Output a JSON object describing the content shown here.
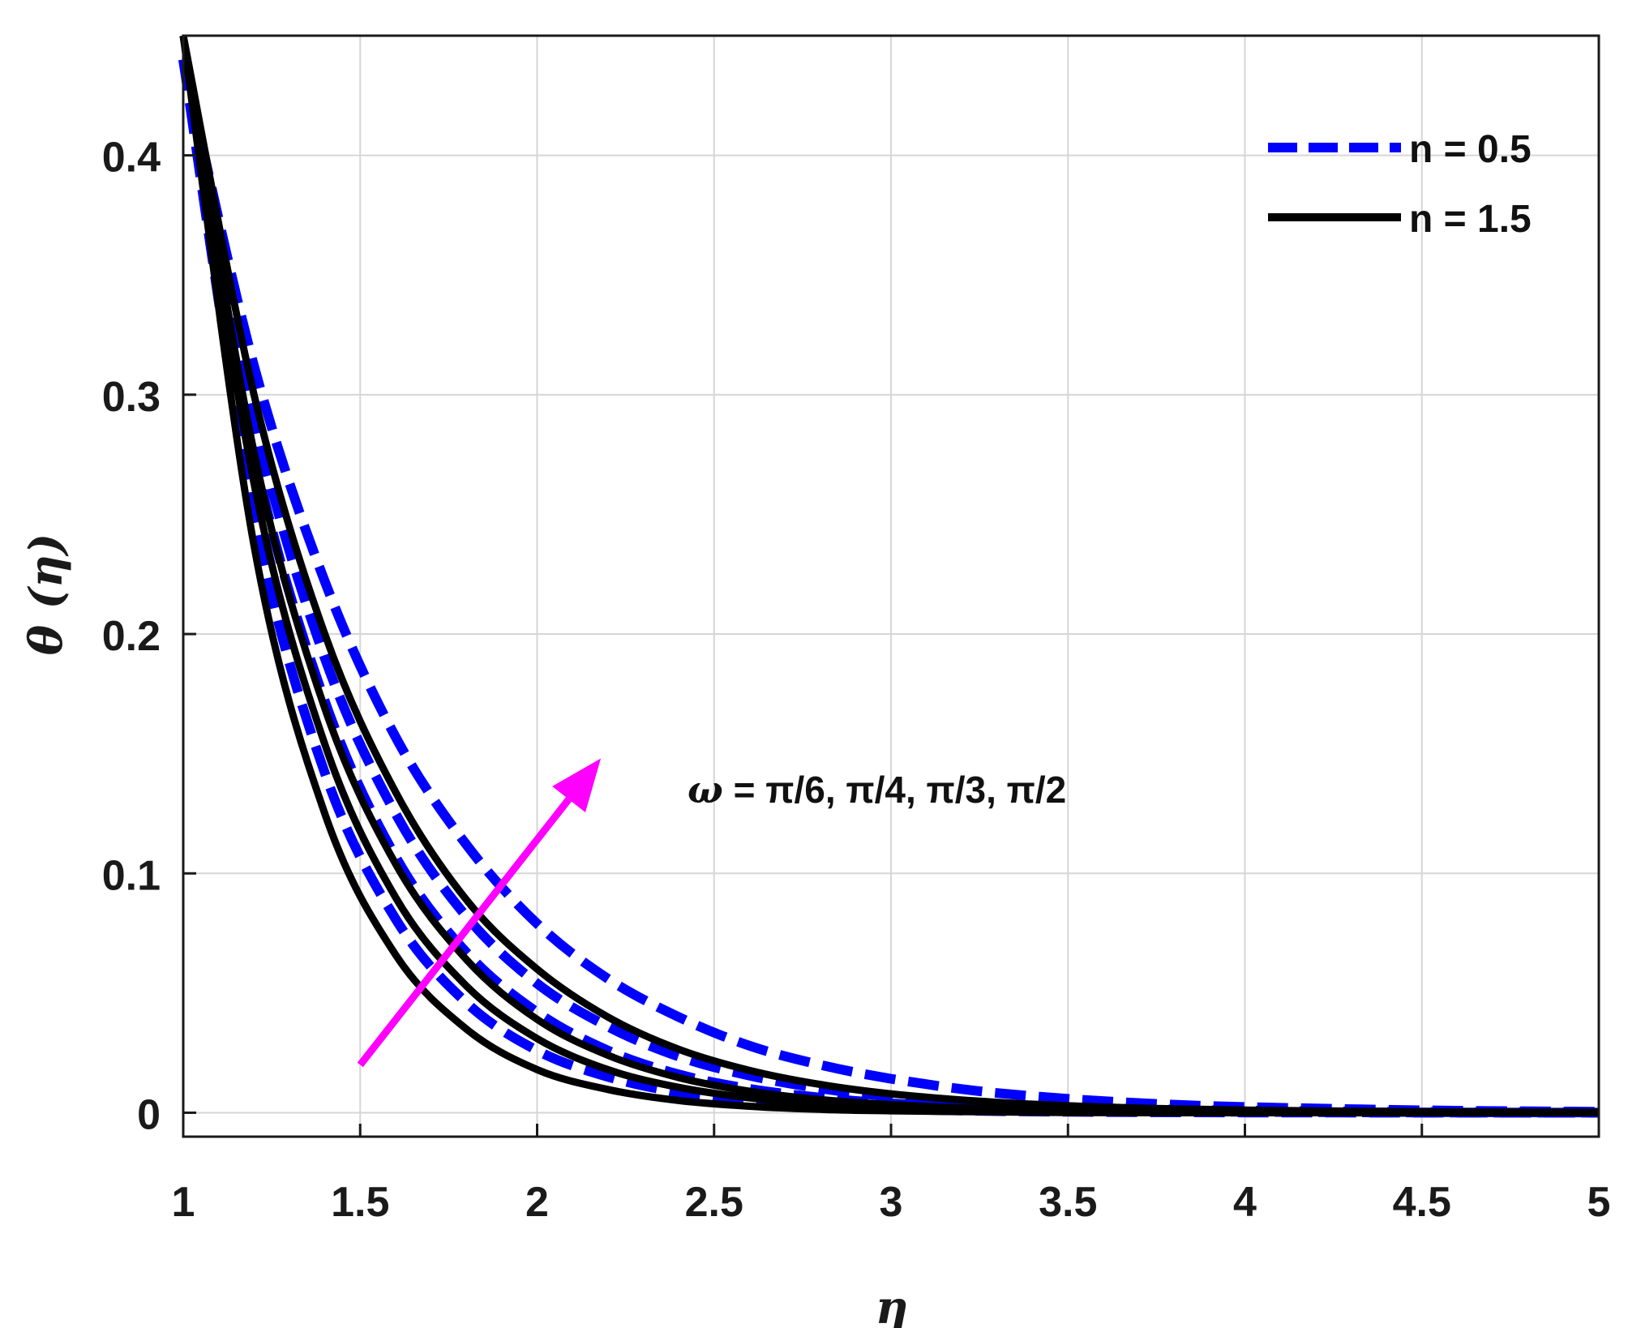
{
  "chart_data": {
    "type": "line",
    "title": "",
    "xlabel": "η",
    "ylabel": "θ (η)",
    "xlim": [
      1,
      5
    ],
    "ylim": [
      -0.01,
      0.45
    ],
    "xticks": [
      1,
      1.5,
      2,
      2.5,
      3,
      3.5,
      4,
      4.5,
      5
    ],
    "xtick_labels": [
      "1",
      "1.5",
      "2",
      "2.5",
      "3",
      "3.5",
      "4",
      "4.5",
      "5"
    ],
    "yticks": [
      0,
      0.1,
      0.2,
      0.3,
      0.4
    ],
    "ytick_labels": [
      "0",
      "0.1",
      "0.2",
      "0.3",
      "0.4"
    ],
    "grid": true,
    "legend": {
      "position": "top-right",
      "entries": [
        {
          "label": "n = 0.5",
          "color": "#0000ff",
          "style": "dashed"
        },
        {
          "label": "n = 1.5",
          "color": "#000000",
          "style": "solid"
        }
      ]
    },
    "annotation": {
      "text_omega": "ω",
      "text_rest": " = π/6, π/4, π/3, π/2",
      "arrow_color": "#ff00ff",
      "arrow_from": [
        1.5,
        0.02
      ],
      "arrow_to": [
        2.18,
        0.148
      ]
    },
    "x": [
      1,
      1.2,
      1.4,
      1.6,
      1.8,
      2,
      2.2,
      2.4,
      2.6,
      2.8,
      3,
      3.25,
      3.5,
      3.75,
      4,
      4.5,
      5
    ],
    "series": [
      {
        "group": "n = 0.5",
        "color": "#0000ff",
        "style": "dashed",
        "values": [
          0.44,
          0.25,
          0.142,
          0.081,
          0.046,
          0.026,
          0.015,
          0.0085,
          0.0048,
          0.0027,
          0.0016,
          0.0008,
          0.0004,
          0.0002,
          0.0001,
          3e-05,
          0.0
        ]
      },
      {
        "group": "n = 0.5",
        "color": "#0000ff",
        "style": "dashed",
        "values": [
          0.44,
          0.275,
          0.172,
          0.107,
          0.067,
          0.042,
          0.026,
          0.016,
          0.01,
          0.0063,
          0.0039,
          0.0022,
          0.0012,
          0.0007,
          0.0004,
          0.0001,
          4e-05
        ]
      },
      {
        "group": "n = 0.5",
        "color": "#0000ff",
        "style": "dashed",
        "values": [
          0.44,
          0.29,
          0.19,
          0.125,
          0.082,
          0.054,
          0.036,
          0.0235,
          0.0155,
          0.0102,
          0.0067,
          0.004,
          0.0024,
          0.0014,
          0.0009,
          0.0003,
          0.0001
        ]
      },
      {
        "group": "n = 0.5",
        "color": "#0000ff",
        "style": "dashed",
        "values": [
          0.44,
          0.312,
          0.222,
          0.157,
          0.112,
          0.079,
          0.056,
          0.04,
          0.028,
          0.02,
          0.0142,
          0.009,
          0.0058,
          0.0037,
          0.0024,
          0.001,
          0.0004
        ]
      },
      {
        "group": "n = 1.5",
        "color": "#000000",
        "style": "solid",
        "values": [
          0.45,
          0.237,
          0.125,
          0.066,
          0.035,
          0.018,
          0.0097,
          0.0051,
          0.0027,
          0.0014,
          0.0008,
          0.0004,
          0.0001,
          0.0,
          0.0,
          0.0,
          0.0
        ]
      },
      {
        "group": "n = 1.5",
        "color": "#000000",
        "style": "solid",
        "values": [
          0.45,
          0.263,
          0.154,
          0.09,
          0.053,
          0.031,
          0.018,
          0.0106,
          0.0062,
          0.0036,
          0.0021,
          0.001,
          0.0005,
          0.0002,
          0.0001,
          0.0,
          0.0
        ]
      },
      {
        "group": "n = 1.5",
        "color": "#000000",
        "style": "solid",
        "values": [
          0.45,
          0.276,
          0.169,
          0.104,
          0.064,
          0.039,
          0.024,
          0.0147,
          0.009,
          0.0055,
          0.0034,
          0.0018,
          0.0009,
          0.0005,
          0.0002,
          0.0001,
          0.0
        ]
      },
      {
        "group": "n = 1.5",
        "color": "#000000",
        "style": "solid",
        "values": [
          0.45,
          0.3,
          0.2,
          0.134,
          0.089,
          0.06,
          0.04,
          0.0265,
          0.0177,
          0.0118,
          0.0079,
          0.0048,
          0.0029,
          0.0018,
          0.0011,
          0.0004,
          0.0002
        ]
      }
    ]
  }
}
